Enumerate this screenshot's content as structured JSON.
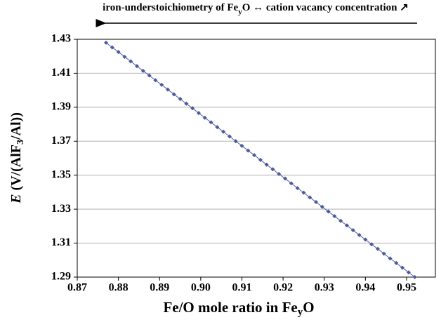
{
  "chart_data": {
    "type": "line",
    "title": [
      "iron-understoichiometry of Fe",
      "y",
      "O ↔ cation vacancy concentration ↗"
    ],
    "xlabel": [
      "Fe/O mole ratio in Fe",
      "y",
      "O"
    ],
    "ylabel": [
      "E",
      " (V/(AlF",
      "3",
      "/Al))"
    ],
    "x": [
      0.877,
      0.8785,
      0.88,
      0.8815,
      0.883,
      0.8845,
      0.886,
      0.8875,
      0.889,
      0.8905,
      0.892,
      0.8935,
      0.895,
      0.8965,
      0.898,
      0.8995,
      0.901,
      0.9025,
      0.904,
      0.9055,
      0.907,
      0.9085,
      0.91,
      0.9115,
      0.913,
      0.9145,
      0.916,
      0.9175,
      0.919,
      0.9205,
      0.922,
      0.9235,
      0.925,
      0.9265,
      0.928,
      0.9295,
      0.931,
      0.9325,
      0.934,
      0.9355,
      0.937,
      0.9385,
      0.94,
      0.9415,
      0.943,
      0.9445,
      0.946,
      0.9475,
      0.949,
      0.9505,
      0.952
    ],
    "series": [
      {
        "color": "#4a5a9c",
        "values": [
          1.428,
          1.4252,
          1.4225,
          1.4197,
          1.417,
          1.4142,
          1.4114,
          1.4087,
          1.4059,
          1.4032,
          1.4004,
          1.3976,
          1.3949,
          1.3921,
          1.3894,
          1.3866,
          1.3838,
          1.3811,
          1.3783,
          1.3756,
          1.3728,
          1.37,
          1.3673,
          1.3645,
          1.3618,
          1.359,
          1.3562,
          1.3535,
          1.3507,
          1.348,
          1.3452,
          1.3424,
          1.3397,
          1.3369,
          1.3342,
          1.3314,
          1.3286,
          1.3259,
          1.3231,
          1.3204,
          1.3176,
          1.3148,
          1.3121,
          1.3093,
          1.3066,
          1.3038,
          1.301,
          1.2983,
          1.2955,
          1.2928,
          1.29
        ]
      }
    ],
    "xlim": [
      0.87,
      0.957
    ],
    "xticks": [
      0.87,
      0.88,
      0.89,
      {
        "value": 0.9,
        "label": "0.90"
      },
      0.91,
      0.92,
      0.93,
      0.94,
      0.95
    ],
    "ylim": [
      1.29,
      1.43
    ],
    "yticks": [
      1.29,
      1.31,
      1.33,
      1.35,
      1.37,
      1.39,
      1.41,
      1.43
    ],
    "grid": true
  }
}
